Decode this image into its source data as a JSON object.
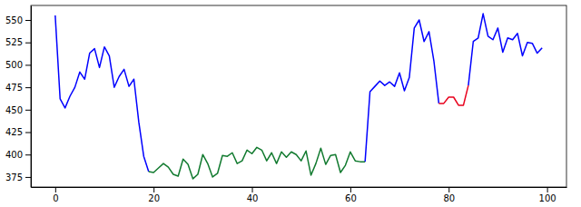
{
  "chart_data": {
    "type": "line",
    "x": [
      0,
      1,
      2,
      3,
      4,
      5,
      6,
      7,
      8,
      9,
      10,
      11,
      12,
      13,
      14,
      15,
      16,
      17,
      18,
      19,
      20,
      21,
      22,
      23,
      24,
      25,
      26,
      27,
      28,
      29,
      30,
      31,
      32,
      33,
      34,
      35,
      36,
      37,
      38,
      39,
      40,
      41,
      42,
      43,
      44,
      45,
      46,
      47,
      48,
      49,
      50,
      51,
      52,
      53,
      54,
      55,
      56,
      57,
      58,
      59,
      60,
      61,
      62,
      63,
      64,
      65,
      66,
      67,
      68,
      69,
      70,
      71,
      72,
      73,
      74,
      75,
      76,
      77,
      78,
      79,
      80,
      81,
      82,
      83,
      84,
      85,
      86,
      87,
      88,
      89,
      90,
      91,
      92,
      93,
      94,
      95,
      96,
      97,
      98,
      99
    ],
    "series": [
      {
        "color": "#0000ff",
        "values": [
          555,
          462,
          452,
          465,
          475,
          492,
          484,
          513,
          518,
          497,
          520,
          510,
          475,
          487,
          495,
          476,
          484,
          436,
          398,
          381,
          null,
          null,
          null,
          null,
          null,
          null,
          null,
          null,
          null,
          null,
          null,
          null,
          null,
          null,
          null,
          null,
          null,
          null,
          null,
          null,
          null,
          null,
          null,
          null,
          null,
          null,
          null,
          null,
          null,
          null,
          null,
          null,
          null,
          null,
          null,
          null,
          null,
          null,
          null,
          null,
          null,
          null,
          null,
          392,
          470,
          476,
          482,
          477,
          481,
          476,
          491,
          471,
          486,
          541,
          550,
          526,
          537,
          504,
          457,
          null,
          null,
          null,
          null,
          null,
          477,
          526,
          530,
          557,
          532,
          528,
          541,
          514,
          530,
          528,
          535,
          510,
          525,
          524,
          513,
          519
        ]
      },
      {
        "color": "#117a2f",
        "values": [
          null,
          null,
          null,
          null,
          null,
          null,
          null,
          null,
          null,
          null,
          null,
          null,
          null,
          null,
          null,
          null,
          null,
          null,
          null,
          381,
          380,
          385,
          390,
          386,
          378,
          376,
          395,
          389,
          373,
          378,
          400,
          390,
          375,
          379,
          399,
          398,
          402,
          390,
          393,
          405,
          401,
          408,
          405,
          393,
          402,
          390,
          403,
          397,
          403,
          400,
          393,
          404,
          377,
          390,
          407,
          389,
          399,
          400,
          380,
          388,
          403,
          393,
          392,
          392,
          null,
          null,
          null,
          null,
          null,
          null,
          null,
          null,
          null,
          null,
          null,
          null,
          null,
          null,
          null,
          null,
          null,
          null,
          null,
          null,
          null,
          null,
          null,
          null,
          null,
          null,
          null,
          null,
          null,
          null,
          null,
          null,
          null,
          null,
          null,
          null
        ]
      },
      {
        "color": "#e8001c",
        "values": [
          null,
          null,
          null,
          null,
          null,
          null,
          null,
          null,
          null,
          null,
          null,
          null,
          null,
          null,
          null,
          null,
          null,
          null,
          null,
          null,
          null,
          null,
          null,
          null,
          null,
          null,
          null,
          null,
          null,
          null,
          null,
          null,
          null,
          null,
          null,
          null,
          null,
          null,
          null,
          null,
          null,
          null,
          null,
          null,
          null,
          null,
          null,
          null,
          null,
          null,
          null,
          null,
          null,
          null,
          null,
          null,
          null,
          null,
          null,
          null,
          null,
          null,
          null,
          null,
          null,
          null,
          null,
          null,
          null,
          null,
          null,
          null,
          null,
          null,
          null,
          null,
          null,
          null,
          457,
          457,
          464,
          464,
          455,
          455,
          477,
          null,
          null,
          null,
          null,
          null,
          null,
          null,
          null,
          null,
          null,
          null,
          null,
          null,
          null,
          null
        ]
      }
    ],
    "xlim": [
      -4.95,
      103.95
    ],
    "xticks": [
      0,
      20,
      40,
      60,
      80,
      100
    ],
    "ylim": [
      363.8,
      566.2
    ],
    "yticks": [
      375,
      400,
      425,
      450,
      475,
      500,
      525,
      550
    ]
  }
}
